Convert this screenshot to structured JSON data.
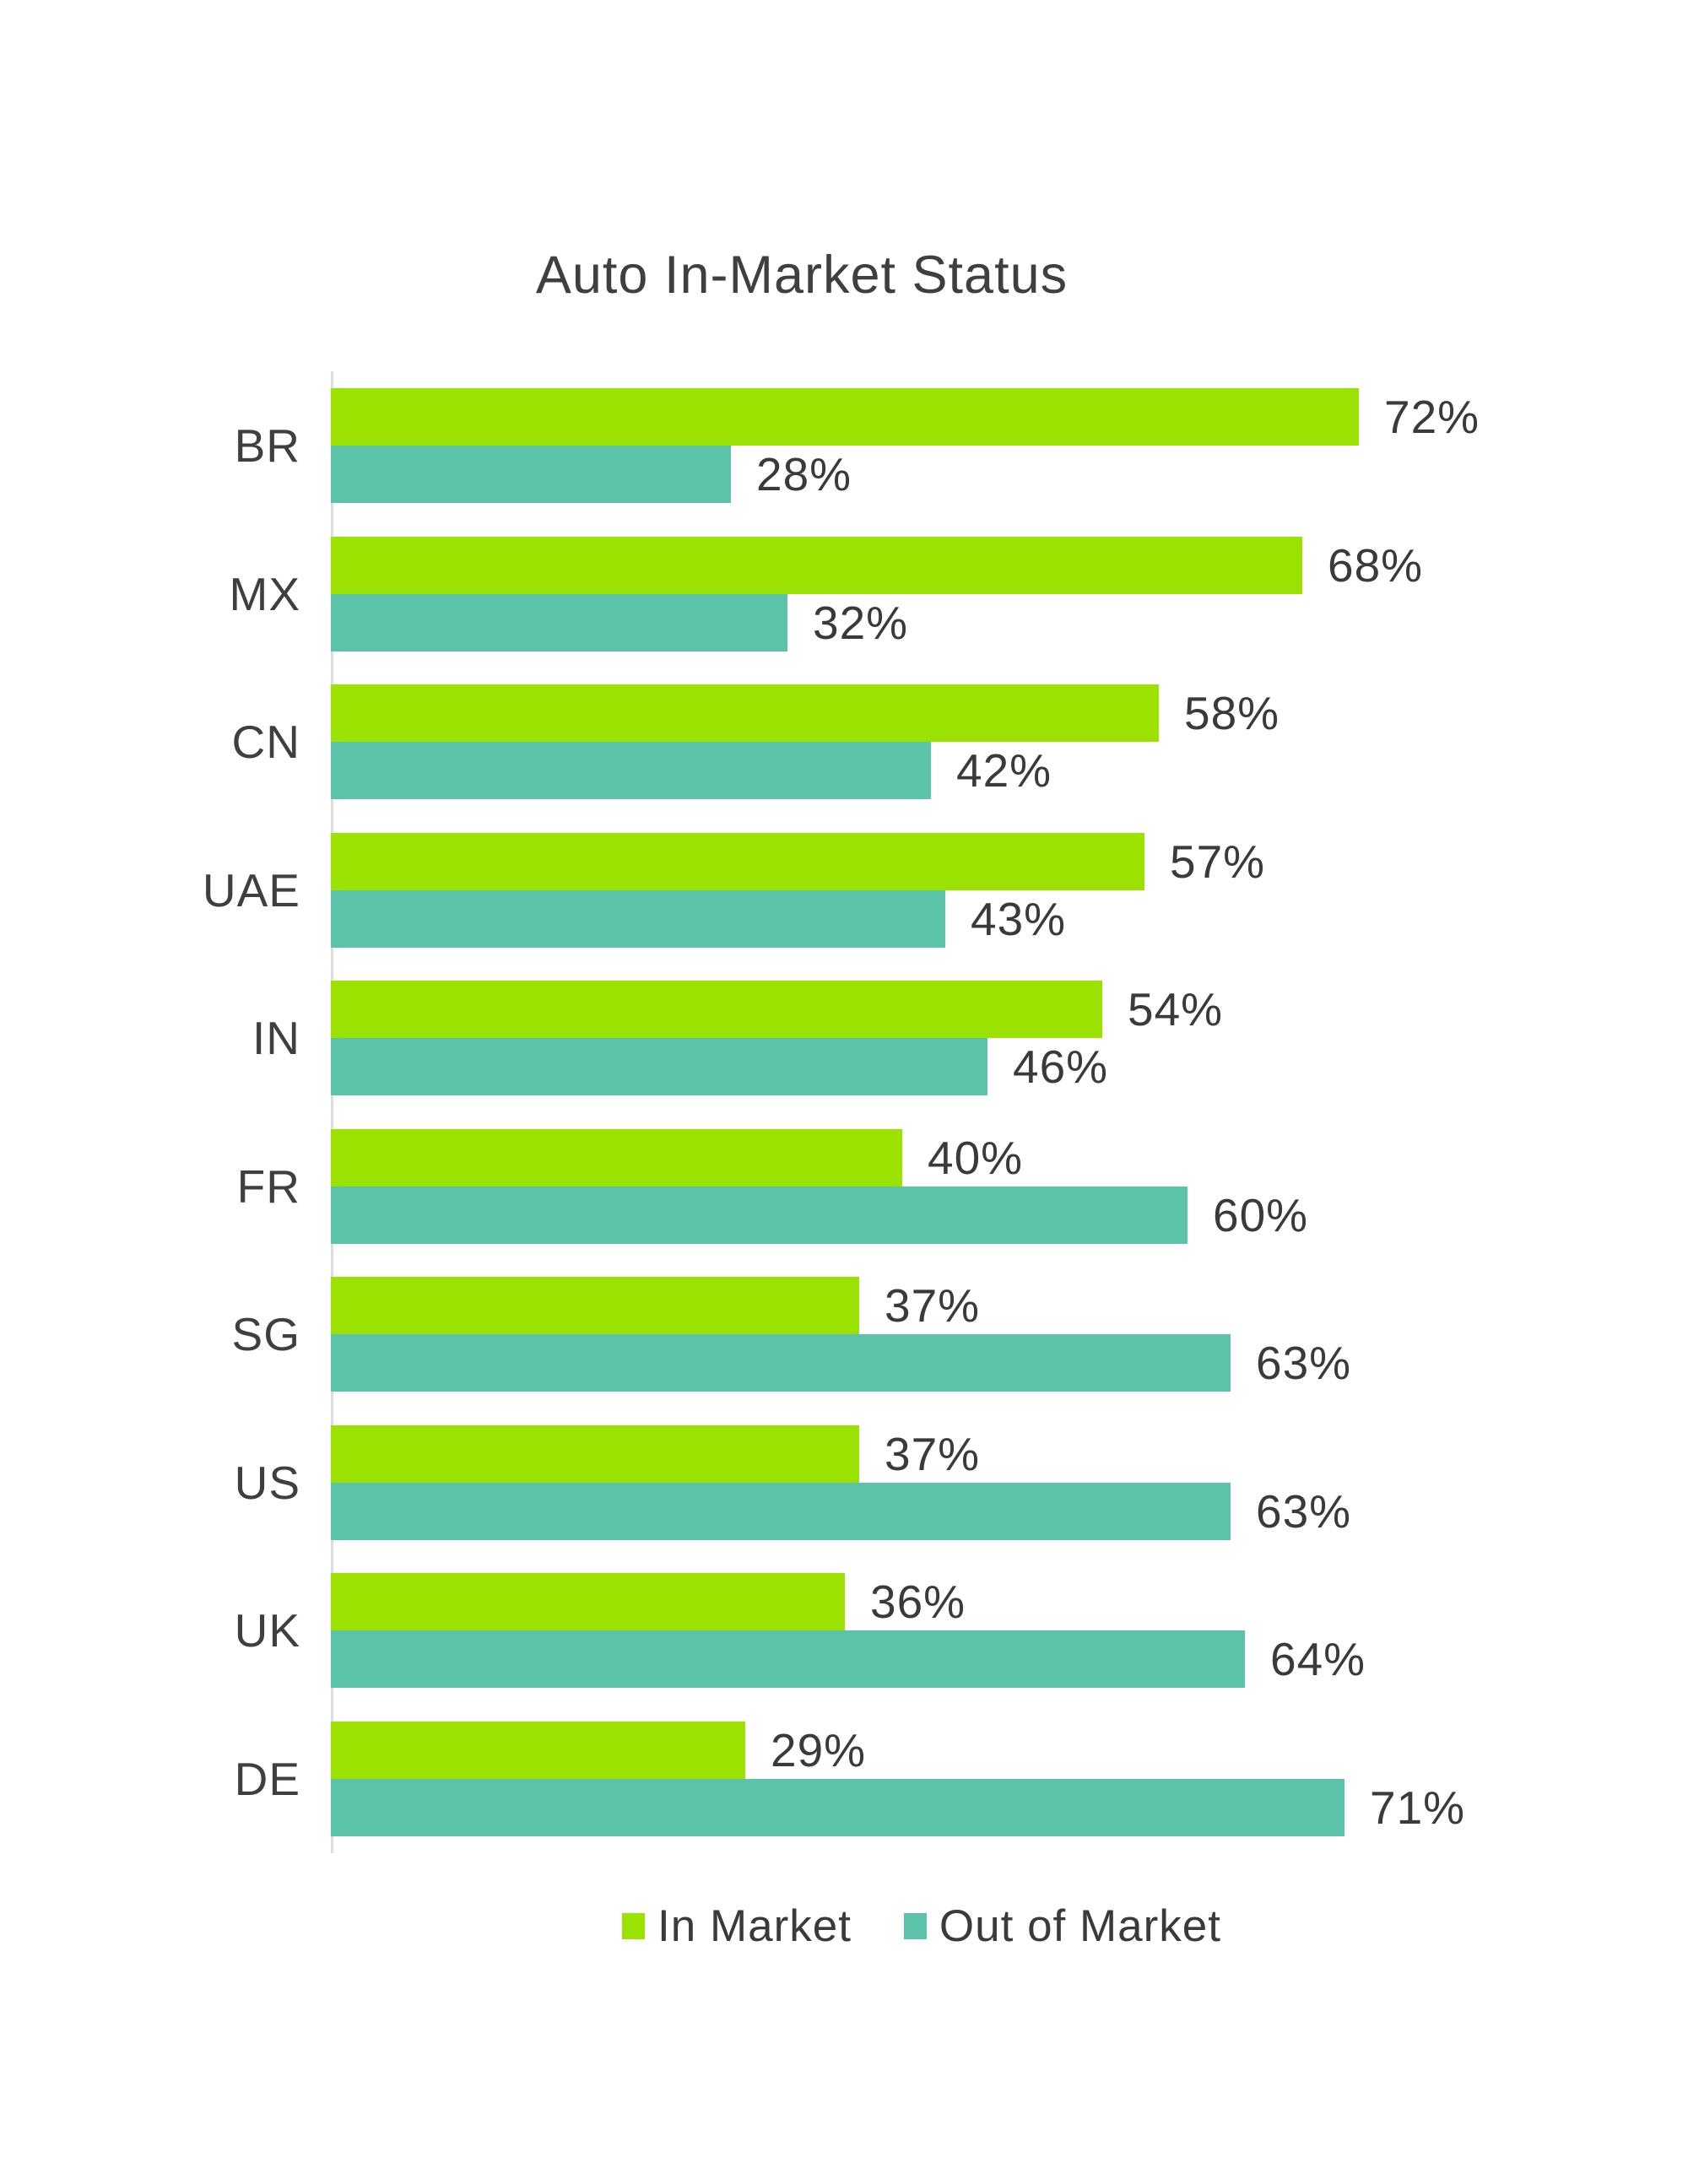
{
  "title": "Auto In-Market Status",
  "chart_data": {
    "type": "bar",
    "orientation": "horizontal",
    "title": "Auto In-Market Status",
    "categories": [
      "BR",
      "MX",
      "CN",
      "UAE",
      "IN",
      "FR",
      "SG",
      "US",
      "UK",
      "DE"
    ],
    "series": [
      {
        "name": "In Market",
        "color": "#9CE201",
        "values": [
          72,
          68,
          58,
          57,
          54,
          40,
          37,
          37,
          36,
          29
        ]
      },
      {
        "name": "Out of Market",
        "color": "#5CC3AB",
        "values": [
          28,
          32,
          42,
          43,
          46,
          60,
          63,
          63,
          64,
          71
        ]
      }
    ],
    "value_suffix": "%",
    "xlim": [
      0,
      100
    ],
    "grid": false,
    "legend_position": "bottom",
    "axis_color": "#DEDEDE",
    "text_color": "#3F3F3F"
  }
}
